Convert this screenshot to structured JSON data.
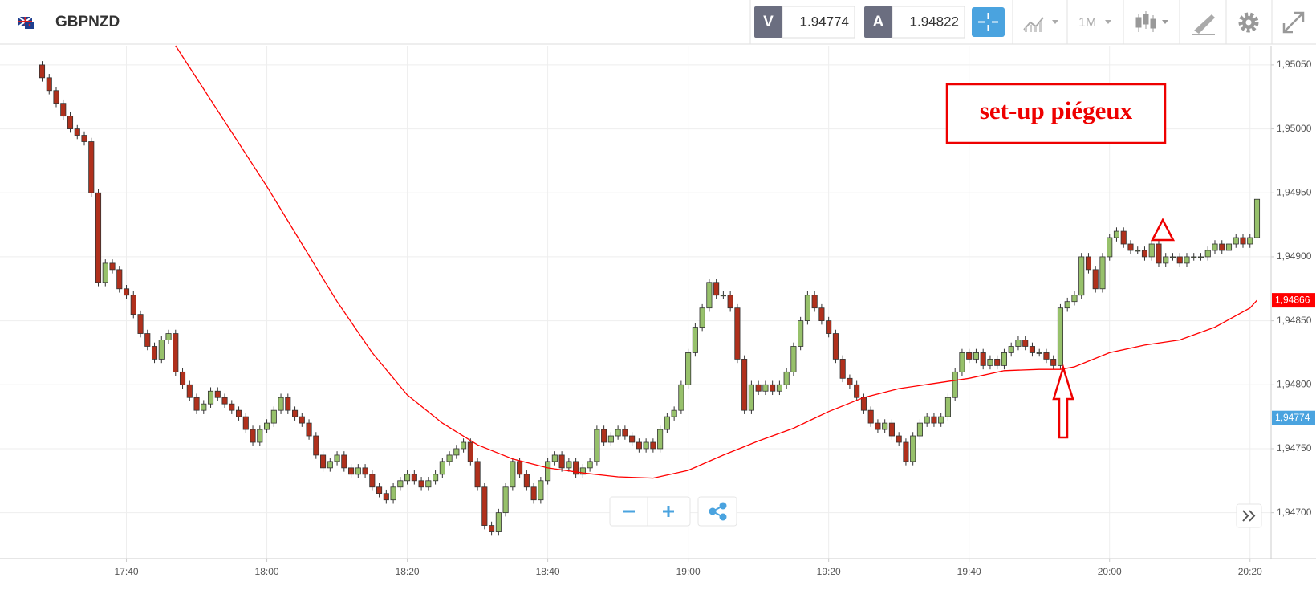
{
  "toolbar": {
    "symbol": "GBPNZD",
    "bid_label": "V",
    "bid": "1.94774",
    "ask_label": "A",
    "ask": "1.94822",
    "timeframe": "1M"
  },
  "chart_data": {
    "type": "candlestick",
    "x": [
      "17:28",
      "17:29",
      "17:30",
      "17:31",
      "17:32",
      "17:33",
      "17:34",
      "17:35",
      "17:36",
      "17:37",
      "17:38",
      "17:39",
      "17:40",
      "17:41",
      "17:42",
      "17:43",
      "17:44",
      "17:45",
      "17:46",
      "17:47",
      "17:48",
      "17:49",
      "17:50",
      "17:51",
      "17:52",
      "17:53",
      "17:54",
      "17:55",
      "17:56",
      "17:57",
      "17:58",
      "17:59",
      "18:00",
      "18:01",
      "18:02",
      "18:03",
      "18:04",
      "18:05",
      "18:06",
      "18:07",
      "18:08",
      "18:09",
      "18:10",
      "18:11",
      "18:12",
      "18:13",
      "18:14",
      "18:15",
      "18:16",
      "18:17",
      "18:18",
      "18:19",
      "18:20",
      "18:21",
      "18:22",
      "18:23",
      "18:24",
      "18:25",
      "18:26",
      "18:27",
      "18:28",
      "18:29",
      "18:30",
      "18:31",
      "18:32",
      "18:33",
      "18:34",
      "18:35",
      "18:36",
      "18:37",
      "18:38",
      "18:39",
      "18:40",
      "18:41",
      "18:42",
      "18:43",
      "18:44",
      "18:45",
      "18:46",
      "18:47",
      "18:48",
      "18:49",
      "18:50",
      "18:51",
      "18:52",
      "18:53",
      "18:54",
      "18:55",
      "18:56",
      "18:57",
      "18:58",
      "18:59",
      "19:00",
      "19:01",
      "19:02",
      "19:03",
      "19:04",
      "19:05",
      "19:06",
      "19:07",
      "19:08",
      "19:09",
      "19:10",
      "19:11",
      "19:12",
      "19:13",
      "19:14",
      "19:15",
      "19:16",
      "19:17",
      "19:18",
      "19:19",
      "19:20",
      "19:21",
      "19:22",
      "19:23",
      "19:24",
      "19:25",
      "19:26",
      "19:27",
      "19:28",
      "19:29",
      "19:30",
      "19:31",
      "19:32",
      "19:33",
      "19:34",
      "19:35",
      "19:36",
      "19:37",
      "19:38",
      "19:39",
      "19:40",
      "19:41",
      "19:42",
      "19:43",
      "19:44",
      "19:45",
      "19:46",
      "19:47",
      "19:48",
      "19:49",
      "19:50",
      "19:51",
      "19:52",
      "19:53",
      "19:54",
      "19:55",
      "19:56",
      "19:57",
      "19:58",
      "19:59",
      "20:00",
      "20:01",
      "20:02",
      "20:03",
      "20:04",
      "20:05",
      "20:06",
      "20:07",
      "20:08",
      "20:09",
      "20:10",
      "20:11",
      "20:12",
      "20:13",
      "20:14",
      "20:15",
      "20:16",
      "20:17",
      "20:18",
      "20:19",
      "20:20",
      "20:21"
    ],
    "open": [
      1.9505,
      1.9504,
      1.9503,
      1.9502,
      1.9501,
      1.95,
      1.94995,
      1.9499,
      1.9495,
      1.9488,
      1.94895,
      1.9489,
      1.94875,
      1.9487,
      1.94855,
      1.9484,
      1.9483,
      1.9482,
      1.94835,
      1.9484,
      1.9481,
      1.948,
      1.9479,
      1.9478,
      1.94785,
      1.94795,
      1.9479,
      1.94785,
      1.9478,
      1.94775,
      1.94765,
      1.94755,
      1.94765,
      1.9477,
      1.9478,
      1.9479,
      1.9478,
      1.94775,
      1.9477,
      1.9476,
      1.94745,
      1.94735,
      1.9474,
      1.94745,
      1.94735,
      1.9473,
      1.94735,
      1.9473,
      1.9472,
      1.94715,
      1.9471,
      1.9472,
      1.94725,
      1.9473,
      1.94725,
      1.9472,
      1.94725,
      1.9473,
      1.9474,
      1.94745,
      1.9475,
      1.94755,
      1.9474,
      1.9472,
      1.9469,
      1.94685,
      1.947,
      1.9472,
      1.9474,
      1.9473,
      1.9472,
      1.9471,
      1.94725,
      1.9474,
      1.94745,
      1.94735,
      1.9474,
      1.9473,
      1.94735,
      1.9474,
      1.94765,
      1.94755,
      1.9476,
      1.94765,
      1.9476,
      1.94755,
      1.9475,
      1.94755,
      1.9475,
      1.94765,
      1.94775,
      1.9478,
      1.948,
      1.94825,
      1.94845,
      1.9486,
      1.9488,
      1.9487,
      1.9487,
      1.9486,
      1.9482,
      1.9478,
      1.948,
      1.94795,
      1.948,
      1.94795,
      1.948,
      1.9481,
      1.9483,
      1.9485,
      1.9487,
      1.9486,
      1.9485,
      1.9484,
      1.9482,
      1.94805,
      1.948,
      1.9479,
      1.9478,
      1.9477,
      1.94765,
      1.9477,
      1.9476,
      1.94755,
      1.9474,
      1.9476,
      1.9477,
      1.94775,
      1.9477,
      1.94775,
      1.9479,
      1.9481,
      1.94825,
      1.9482,
      1.94825,
      1.94815,
      1.9482,
      1.94815,
      1.94825,
      1.9483,
      1.94835,
      1.9483,
      1.94825,
      1.94825,
      1.9482,
      1.94815,
      1.9486,
      1.94865,
      1.9487,
      1.949,
      1.9489,
      1.94875,
      1.949,
      1.94915,
      1.9492,
      1.9491,
      1.94905,
      1.94905,
      1.949,
      1.9491,
      1.94895,
      1.949,
      1.949,
      1.94895,
      1.949,
      1.949,
      1.949,
      1.94905,
      1.9491,
      1.94905,
      1.9491,
      1.94915,
      1.9491,
      1.94915
    ],
    "high": [
      1.95053,
      1.95043,
      1.95033,
      1.95023,
      1.95013,
      1.95003,
      1.94998,
      1.94993,
      1.94953,
      1.94898,
      1.94898,
      1.94893,
      1.94878,
      1.94873,
      1.94858,
      1.94843,
      1.94833,
      1.94838,
      1.94843,
      1.94843,
      1.94813,
      1.94803,
      1.94793,
      1.94788,
      1.94798,
      1.94798,
      1.94793,
      1.94788,
      1.94783,
      1.94778,
      1.94768,
      1.94768,
      1.94773,
      1.94783,
      1.94793,
      1.94793,
      1.94783,
      1.94778,
      1.94773,
      1.94763,
      1.94748,
      1.94743,
      1.94748,
      1.94748,
      1.94738,
      1.94738,
      1.94738,
      1.94733,
      1.94723,
      1.94718,
      1.94723,
      1.94728,
      1.94733,
      1.94733,
      1.94728,
      1.94728,
      1.94733,
      1.94743,
      1.94748,
      1.94753,
      1.94758,
      1.94758,
      1.94743,
      1.94723,
      1.94693,
      1.94703,
      1.94723,
      1.94743,
      1.94743,
      1.94733,
      1.94723,
      1.94728,
      1.94743,
      1.94748,
      1.94748,
      1.94743,
      1.94743,
      1.94738,
      1.94743,
      1.94768,
      1.94768,
      1.94763,
      1.94768,
      1.94768,
      1.94763,
      1.94758,
      1.94758,
      1.94758,
      1.94768,
      1.94778,
      1.94783,
      1.94803,
      1.94828,
      1.94848,
      1.94863,
      1.94883,
      1.94883,
      1.94873,
      1.94873,
      1.94863,
      1.94823,
      1.94803,
      1.94803,
      1.94803,
      1.94803,
      1.94803,
      1.94813,
      1.94833,
      1.94853,
      1.94873,
      1.94873,
      1.94863,
      1.94853,
      1.94843,
      1.94823,
      1.94808,
      1.94803,
      1.94793,
      1.94783,
      1.94773,
      1.94773,
      1.94773,
      1.94763,
      1.94758,
      1.94763,
      1.94773,
      1.94778,
      1.94778,
      1.94778,
      1.94793,
      1.94813,
      1.94828,
      1.94828,
      1.94828,
      1.94828,
      1.94823,
      1.94823,
      1.94828,
      1.94833,
      1.94838,
      1.94838,
      1.94833,
      1.94828,
      1.94828,
      1.94823,
      1.94863,
      1.94868,
      1.94873,
      1.94903,
      1.94903,
      1.94893,
      1.94903,
      1.94918,
      1.94923,
      1.94923,
      1.94913,
      1.94908,
      1.94908,
      1.94913,
      1.94913,
      1.94903,
      1.94903,
      1.94903,
      1.94903,
      1.94903,
      1.94903,
      1.94908,
      1.94913,
      1.94913,
      1.94913,
      1.94918,
      1.94918,
      1.94918,
      1.94948
    ],
    "low": [
      1.95037,
      1.95027,
      1.95017,
      1.95007,
      1.94997,
      1.94992,
      1.94987,
      1.94947,
      1.94877,
      1.94877,
      1.94887,
      1.94872,
      1.94867,
      1.94852,
      1.94837,
      1.94827,
      1.94817,
      1.94817,
      1.94832,
      1.94807,
      1.94797,
      1.94787,
      1.94777,
      1.94777,
      1.94782,
      1.94787,
      1.94782,
      1.94777,
      1.94772,
      1.94762,
      1.94752,
      1.94752,
      1.94762,
      1.94767,
      1.94777,
      1.94777,
      1.94772,
      1.94767,
      1.94757,
      1.94742,
      1.94732,
      1.94732,
      1.94737,
      1.94732,
      1.94727,
      1.94727,
      1.94727,
      1.94717,
      1.94712,
      1.94707,
      1.94707,
      1.94717,
      1.94722,
      1.94722,
      1.94717,
      1.94717,
      1.94722,
      1.94727,
      1.94737,
      1.94742,
      1.94747,
      1.94737,
      1.94717,
      1.94687,
      1.94682,
      1.94682,
      1.94697,
      1.94717,
      1.94727,
      1.94717,
      1.94707,
      1.94707,
      1.94722,
      1.94737,
      1.94732,
      1.94732,
      1.94727,
      1.94727,
      1.94732,
      1.94737,
      1.94752,
      1.94752,
      1.94757,
      1.94757,
      1.94752,
      1.94747,
      1.94747,
      1.94747,
      1.94747,
      1.94762,
      1.94772,
      1.94777,
      1.94797,
      1.94822,
      1.94842,
      1.94857,
      1.94867,
      1.94867,
      1.94857,
      1.94817,
      1.94777,
      1.94777,
      1.94792,
      1.94792,
      1.94792,
      1.94792,
      1.94797,
      1.94807,
      1.94827,
      1.94847,
      1.94857,
      1.94847,
      1.94837,
      1.94817,
      1.94802,
      1.94797,
      1.94787,
      1.94777,
      1.94767,
      1.94762,
      1.94762,
      1.94757,
      1.94752,
      1.94737,
      1.94737,
      1.94757,
      1.94767,
      1.94767,
      1.94767,
      1.94772,
      1.94787,
      1.94807,
      1.94817,
      1.94817,
      1.94812,
      1.94812,
      1.94812,
      1.94812,
      1.94822,
      1.94827,
      1.94827,
      1.94822,
      1.94822,
      1.94817,
      1.94812,
      1.94812,
      1.94857,
      1.94862,
      1.94867,
      1.94887,
      1.94872,
      1.94872,
      1.94897,
      1.94912,
      1.94907,
      1.94902,
      1.94902,
      1.94897,
      1.94897,
      1.94892,
      1.94892,
      1.94897,
      1.94892,
      1.94892,
      1.94897,
      1.94897,
      1.94897,
      1.94902,
      1.94902,
      1.94902,
      1.94907,
      1.94907,
      1.94907,
      1.94912
    ],
    "close": [
      1.9504,
      1.9503,
      1.9502,
      1.9501,
      1.95,
      1.94995,
      1.9499,
      1.9495,
      1.9488,
      1.94895,
      1.9489,
      1.94875,
      1.9487,
      1.94855,
      1.9484,
      1.9483,
      1.9482,
      1.94835,
      1.9484,
      1.9481,
      1.948,
      1.9479,
      1.9478,
      1.94785,
      1.94795,
      1.9479,
      1.94785,
      1.9478,
      1.94775,
      1.94765,
      1.94755,
      1.94765,
      1.9477,
      1.9478,
      1.9479,
      1.9478,
      1.94775,
      1.9477,
      1.9476,
      1.94745,
      1.94735,
      1.9474,
      1.94745,
      1.94735,
      1.9473,
      1.94735,
      1.9473,
      1.9472,
      1.94715,
      1.9471,
      1.9472,
      1.94725,
      1.9473,
      1.94725,
      1.9472,
      1.94725,
      1.9473,
      1.9474,
      1.94745,
      1.9475,
      1.94755,
      1.9474,
      1.9472,
      1.9469,
      1.94685,
      1.947,
      1.9472,
      1.9474,
      1.9473,
      1.9472,
      1.9471,
      1.94725,
      1.9474,
      1.94745,
      1.94735,
      1.9474,
      1.9473,
      1.94735,
      1.9474,
      1.94765,
      1.94755,
      1.9476,
      1.94765,
      1.9476,
      1.94755,
      1.9475,
      1.94755,
      1.9475,
      1.94765,
      1.94775,
      1.9478,
      1.948,
      1.94825,
      1.94845,
      1.9486,
      1.9488,
      1.9487,
      1.9487,
      1.9486,
      1.9482,
      1.9478,
      1.948,
      1.94795,
      1.948,
      1.94795,
      1.948,
      1.9481,
      1.9483,
      1.9485,
      1.9487,
      1.9486,
      1.9485,
      1.9484,
      1.9482,
      1.94805,
      1.948,
      1.9479,
      1.9478,
      1.9477,
      1.94765,
      1.9477,
      1.9476,
      1.94755,
      1.9474,
      1.9476,
      1.9477,
      1.94775,
      1.9477,
      1.94775,
      1.9479,
      1.9481,
      1.94825,
      1.9482,
      1.94825,
      1.94815,
      1.9482,
      1.94815,
      1.94825,
      1.9483,
      1.94835,
      1.9483,
      1.94825,
      1.94825,
      1.9482,
      1.94815,
      1.9486,
      1.94865,
      1.9487,
      1.949,
      1.9489,
      1.94875,
      1.949,
      1.94915,
      1.9492,
      1.9491,
      1.94905,
      1.94905,
      1.949,
      1.9491,
      1.94895,
      1.949,
      1.949,
      1.94895,
      1.949,
      1.949,
      1.949,
      1.94905,
      1.9491,
      1.94905,
      1.9491,
      1.94915,
      1.9491,
      1.94915,
      1.94945
    ],
    "up_color": "#97c16b",
    "down_color": "#b0301c",
    "moving_average": {
      "type": "line",
      "color": "#ff0000",
      "x": [
        "17:47",
        "18:00",
        "18:05",
        "18:10",
        "18:15",
        "18:20",
        "18:25",
        "18:30",
        "18:35",
        "18:40",
        "18:45",
        "18:50",
        "18:55",
        "19:00",
        "19:05",
        "19:10",
        "19:15",
        "19:20",
        "19:25",
        "19:30",
        "19:35",
        "19:40",
        "19:45",
        "19:50",
        "19:53",
        "19:55",
        "20:00",
        "20:05",
        "20:10",
        "20:15",
        "20:20",
        "20:21"
      ],
      "values": [
        1.95065,
        1.94955,
        1.9491,
        1.94865,
        1.94825,
        1.94792,
        1.9477,
        1.94753,
        1.94742,
        1.94735,
        1.94731,
        1.94728,
        1.94727,
        1.94733,
        1.94745,
        1.94756,
        1.94766,
        1.94779,
        1.9479,
        1.94797,
        1.94801,
        1.94805,
        1.94811,
        1.94812,
        1.94812,
        1.94814,
        1.94825,
        1.94831,
        1.94835,
        1.94845,
        1.9486,
        1.94866
      ]
    },
    "price_labels": [
      {
        "value": 1.94866,
        "label": "1,94866",
        "color": "#ff0000"
      },
      {
        "value": 1.94774,
        "label": "1,94774",
        "color": "#4aa3df"
      }
    ],
    "annotation": "set-up piégeux",
    "xlim": [
      "17:22",
      "20:23"
    ],
    "xticks": [
      "17:40",
      "18:00",
      "18:20",
      "18:40",
      "19:00",
      "19:20",
      "19:40",
      "20:00",
      "20:20"
    ],
    "ylim": [
      1.94664,
      1.95065
    ],
    "yticks": [
      {
        "value": 1.947,
        "label": "1,94700"
      },
      {
        "value": 1.9475,
        "label": "1,94750"
      },
      {
        "value": 1.948,
        "label": "1,94800"
      },
      {
        "value": 1.9485,
        "label": "1,94850"
      },
      {
        "value": 1.949,
        "label": "1,94900"
      },
      {
        "value": 1.9495,
        "label": "1,94950"
      },
      {
        "value": 1.95,
        "label": "1,95000"
      },
      {
        "value": 1.9505,
        "label": "1,95050"
      }
    ],
    "grid": true
  }
}
